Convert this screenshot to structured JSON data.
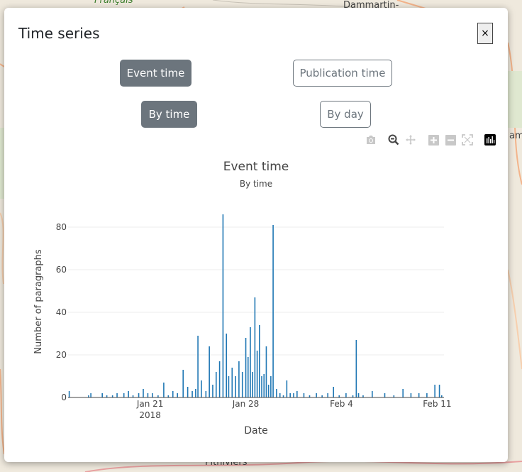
{
  "map": {
    "labels": [
      "Français",
      "Dammartin-",
      "Pithiviers",
      "ami"
    ]
  },
  "modal": {
    "title": "Time series",
    "close_label": "×"
  },
  "toggles": {
    "event_time": "Event time",
    "publication_time": "Publication time",
    "by_time": "By time",
    "by_day": "By day",
    "time_mode_selected": "Event time",
    "grouping_selected": "By time"
  },
  "modebar": {
    "icons": [
      "camera-icon",
      "zoom-icon",
      "pan-icon",
      "zoom-in-icon",
      "zoom-out-icon",
      "autoscale-icon",
      "plotly-logo-icon"
    ]
  },
  "chart_data": {
    "type": "bar",
    "title": "Event time",
    "subtitle": "By time",
    "xlabel": "Date",
    "ylabel": "Number of paragraphs",
    "ylim": [
      0,
      88
    ],
    "yticks": [
      0,
      20,
      40,
      60,
      80
    ],
    "xlim": [
      "2018-01-15",
      "2018-02-11 12:00"
    ],
    "xticks": [
      {
        "date": "2018-01-21",
        "label": "Jan 21",
        "sublabel": "2018"
      },
      {
        "date": "2018-01-28",
        "label": "Jan 28",
        "sublabel": ""
      },
      {
        "date": "2018-02-04",
        "label": "Feb 4",
        "sublabel": ""
      },
      {
        "date": "2018-02-11",
        "label": "Feb 11",
        "sublabel": ""
      }
    ],
    "grid": true,
    "bar_color": "#1f77b4",
    "series": [
      {
        "x": [
          "2018-01-15 02:00",
          "2018-01-16 12:00",
          "2018-01-16 16:00",
          "2018-01-17 12:00",
          "2018-01-17 20:00",
          "2018-01-18 06:00",
          "2018-01-18 14:00",
          "2018-01-19 02:00",
          "2018-01-19 10:00",
          "2018-01-19 18:00",
          "2018-01-20 04:00",
          "2018-01-20 12:00",
          "2018-01-20 20:00",
          "2018-01-21 04:00",
          "2018-01-21 14:00",
          "2018-01-22 00:00",
          "2018-01-22 08:00",
          "2018-01-22 16:00",
          "2018-01-23 00:00",
          "2018-01-23 10:00",
          "2018-01-23 18:00",
          "2018-01-24 02:00",
          "2018-01-24 08:00",
          "2018-01-24 12:00",
          "2018-01-24 18:00",
          "2018-01-25 02:00",
          "2018-01-25 08:00",
          "2018-01-25 14:00",
          "2018-01-25 20:00",
          "2018-01-26 02:00",
          "2018-01-26 08:00",
          "2018-01-26 14:00",
          "2018-01-26 18:00",
          "2018-01-27 00:00",
          "2018-01-27 06:00",
          "2018-01-27 12:00",
          "2018-01-27 18:00",
          "2018-01-28 00:00",
          "2018-01-28 04:00",
          "2018-01-28 08:00",
          "2018-01-28 12:00",
          "2018-01-28 16:00",
          "2018-01-28 20:00",
          "2018-01-29 00:00",
          "2018-01-29 04:00",
          "2018-01-29 08:00",
          "2018-01-29 12:00",
          "2018-01-29 16:00",
          "2018-01-29 20:00",
          "2018-01-30 00:00",
          "2018-01-30 06:00",
          "2018-01-30 12:00",
          "2018-01-30 18:00",
          "2018-01-31 00:00",
          "2018-01-31 06:00",
          "2018-01-31 12:00",
          "2018-01-31 18:00",
          "2018-02-01 06:00",
          "2018-02-01 16:00",
          "2018-02-02 04:00",
          "2018-02-02 14:00",
          "2018-02-03 00:00",
          "2018-02-03 10:00",
          "2018-02-03 20:00",
          "2018-02-04 08:00",
          "2018-02-04 20:00",
          "2018-02-05 02:00",
          "2018-02-05 06:00",
          "2018-02-05 14:00",
          "2018-02-06 06:00",
          "2018-02-07 04:00",
          "2018-02-07 20:00",
          "2018-02-08 12:00",
          "2018-02-09 02:00",
          "2018-02-09 16:00",
          "2018-02-10 06:00",
          "2018-02-10 20:00",
          "2018-02-11 04:00",
          "2018-02-11 08:00"
        ],
        "y": [
          3,
          1,
          2,
          2,
          1,
          1,
          2,
          2,
          3,
          1,
          2,
          4,
          2,
          2,
          1,
          7,
          1,
          3,
          2,
          13,
          5,
          3,
          4,
          29,
          8,
          3,
          24,
          6,
          12,
          17,
          86,
          30,
          10,
          14,
          10,
          17,
          12,
          28,
          19,
          33,
          12,
          47,
          22,
          34,
          10,
          11,
          24,
          6,
          10,
          81,
          4,
          2,
          1,
          8,
          2,
          2,
          3,
          2,
          1,
          2,
          1,
          2,
          5,
          1,
          2,
          1,
          27,
          2,
          1,
          3,
          2,
          1,
          4,
          2,
          2,
          2,
          6,
          6,
          1
        ]
      }
    ]
  }
}
